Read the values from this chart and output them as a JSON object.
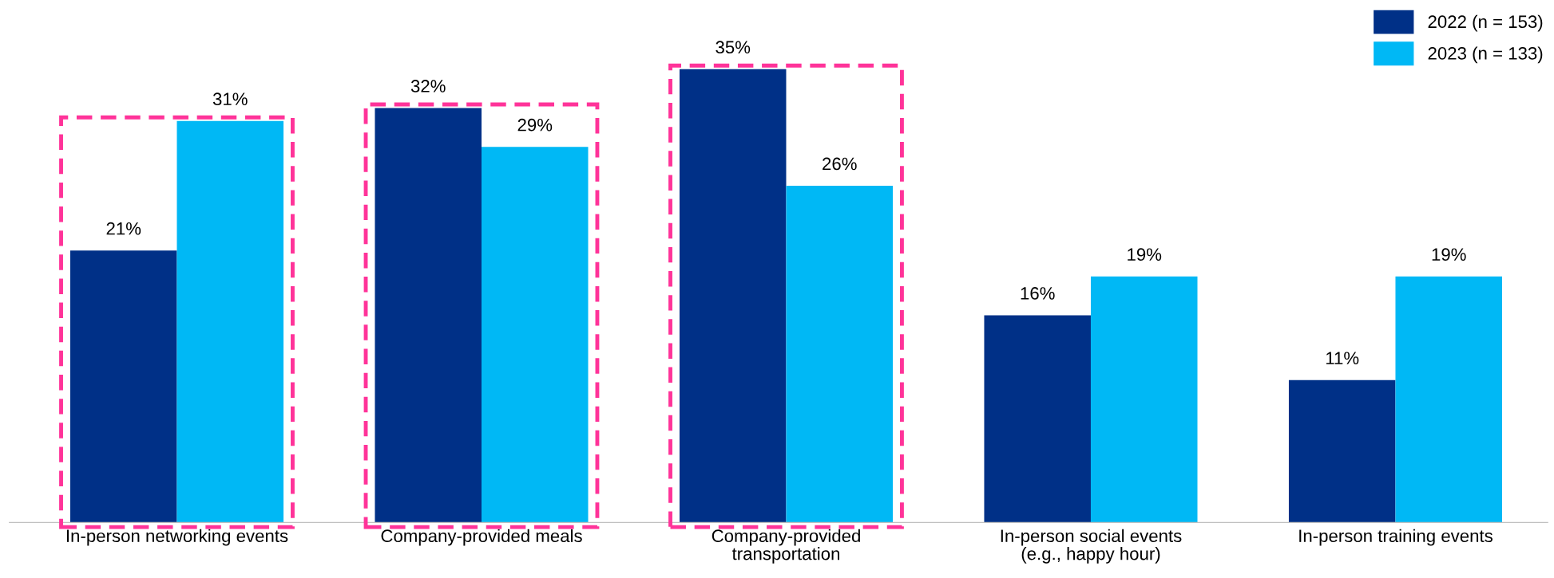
{
  "chart_data": {
    "type": "bar",
    "categories": [
      "In-person networking events",
      "Company-provided meals",
      "Company-provided\ntransportation",
      "In-person social events\n(e.g., happy hour)",
      "In-person training events"
    ],
    "series": [
      {
        "name": "2022 (n = 153)",
        "color": "#003087",
        "values": [
          21,
          32,
          35,
          16,
          11
        ],
        "value_labels": [
          "21%",
          "32%",
          "35%",
          "16%",
          "11%"
        ]
      },
      {
        "name": "2023 (n = 133)",
        "color": "#00b8f5",
        "values": [
          31,
          29,
          26,
          19,
          19
        ],
        "value_labels": [
          "31%",
          "29%",
          "26%",
          "19%",
          "19%"
        ]
      }
    ],
    "legend": "top right",
    "grid": false
  }
}
